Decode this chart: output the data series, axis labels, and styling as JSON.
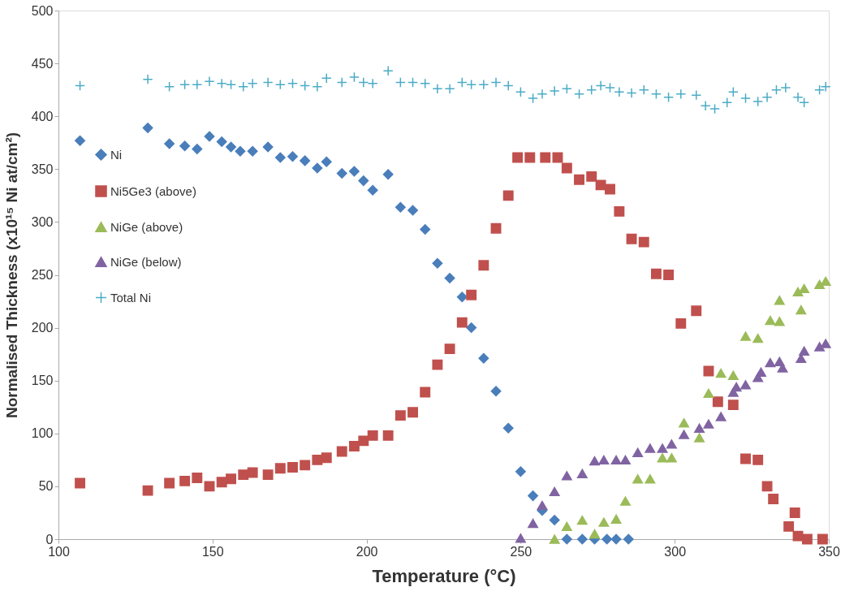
{
  "chart_data": {
    "type": "scatter",
    "xlabel": "Temperature (°C)",
    "ylabel": "Normalised Thickness (x10¹⁵ Ni at/cm²)",
    "xlim": [
      100,
      350
    ],
    "xticks": [
      100,
      150,
      200,
      250,
      300,
      350
    ],
    "ylim": [
      0,
      500
    ],
    "yticks": [
      0,
      50,
      100,
      150,
      200,
      250,
      300,
      350,
      400,
      450,
      500
    ],
    "grid": false,
    "legend": "left",
    "series": [
      {
        "name": "Ni",
        "color": "#4a7ebb",
        "marker": "diamond",
        "x": [
          107,
          129,
          136,
          141,
          145,
          149,
          153,
          156,
          159,
          163,
          168,
          172,
          176,
          180,
          184,
          187,
          192,
          196,
          199,
          202,
          207,
          211,
          215,
          219,
          223,
          227,
          231,
          234,
          238,
          242,
          246,
          250,
          254,
          257,
          261,
          265,
          270,
          274,
          278,
          281,
          285
        ],
        "values": [
          377,
          389,
          374,
          372,
          369,
          381,
          376,
          371,
          367,
          367,
          371,
          361,
          362,
          358,
          351,
          357,
          346,
          348,
          339,
          330,
          345,
          314,
          311,
          293,
          261,
          247,
          229,
          200,
          171,
          140,
          105,
          64,
          41,
          27,
          18,
          0,
          0,
          0,
          0,
          0,
          0
        ]
      },
      {
        "name": "Ni5Ge3 (above)",
        "color": "#c0504d",
        "marker": "square",
        "x": [
          107,
          129,
          136,
          141,
          145,
          149,
          153,
          156,
          160,
          163,
          168,
          172,
          176,
          180,
          184,
          187,
          192,
          196,
          199,
          202,
          207,
          211,
          215,
          219,
          223,
          227,
          231,
          234,
          238,
          242,
          246,
          249,
          253,
          258,
          262,
          265,
          269,
          273,
          276,
          279,
          282,
          286,
          290,
          294,
          298,
          302,
          307,
          311,
          314,
          319,
          323,
          327,
          330,
          332,
          337,
          339,
          340,
          343,
          348
        ],
        "values": [
          53,
          46,
          53,
          55,
          58,
          50,
          54,
          57,
          61,
          63,
          61,
          67,
          68,
          70,
          75,
          77,
          83,
          88,
          93,
          98,
          98,
          117,
          120,
          139,
          165,
          180,
          205,
          231,
          259,
          294,
          325,
          361,
          361,
          361,
          361,
          351,
          340,
          343,
          335,
          331,
          310,
          284,
          281,
          251,
          250,
          204,
          216,
          159,
          130,
          127,
          76,
          75,
          50,
          38,
          12,
          25,
          3,
          0,
          0
        ]
      },
      {
        "name": "NiGe (above)",
        "color": "#9bbb59",
        "marker": "triangle",
        "x": [
          261,
          265,
          270,
          274,
          277,
          281,
          284,
          288,
          292,
          296,
          299,
          303,
          308,
          311,
          315,
          319,
          323,
          327,
          331,
          334,
          334,
          340,
          341,
          342,
          347,
          349
        ],
        "values": [
          0,
          12,
          18,
          5,
          16,
          19,
          36,
          57,
          57,
          77,
          77,
          110,
          96,
          138,
          157,
          155,
          192,
          190,
          207,
          206,
          226,
          234,
          217,
          237,
          241,
          244
        ]
      },
      {
        "name": "NiGe (below)",
        "color": "#8064a2",
        "marker": "triangle",
        "x": [
          250,
          254,
          257,
          261,
          265,
          270,
          274,
          277,
          281,
          284,
          288,
          292,
          296,
          299,
          303,
          308,
          311,
          315,
          319,
          320,
          323,
          327,
          328,
          331,
          334,
          335,
          341,
          342,
          347,
          349
        ],
        "values": [
          1,
          15,
          32,
          45,
          60,
          62,
          74,
          75,
          75,
          75,
          82,
          86,
          86,
          90,
          99,
          105,
          109,
          116,
          139,
          144,
          146,
          153,
          158,
          167,
          168,
          162,
          171,
          178,
          182,
          185
        ]
      },
      {
        "name": "Total Ni",
        "color": "#4bacc6",
        "marker": "cross",
        "x": [
          107,
          129,
          136,
          141,
          145,
          149,
          153,
          156,
          160,
          163,
          168,
          172,
          176,
          180,
          184,
          187,
          192,
          196,
          199,
          202,
          207,
          211,
          215,
          219,
          223,
          227,
          231,
          234,
          238,
          242,
          246,
          250,
          254,
          257,
          261,
          265,
          269,
          273,
          276,
          279,
          282,
          286,
          290,
          294,
          298,
          302,
          307,
          310,
          313,
          317,
          319,
          323,
          327,
          330,
          333,
          336,
          340,
          342,
          347,
          349
        ],
        "values": [
          429,
          435,
          428,
          430,
          430,
          433,
          431,
          430,
          428,
          431,
          432,
          430,
          431,
          429,
          428,
          436,
          432,
          437,
          432,
          431,
          443,
          432,
          432,
          431,
          426,
          426,
          432,
          430,
          430,
          432,
          429,
          423,
          417,
          421,
          424,
          426,
          421,
          425,
          429,
          427,
          423,
          422,
          425,
          421,
          418,
          421,
          420,
          410,
          407,
          413,
          423,
          417,
          414,
          418,
          425,
          427,
          418,
          413,
          425,
          428
        ]
      }
    ]
  }
}
